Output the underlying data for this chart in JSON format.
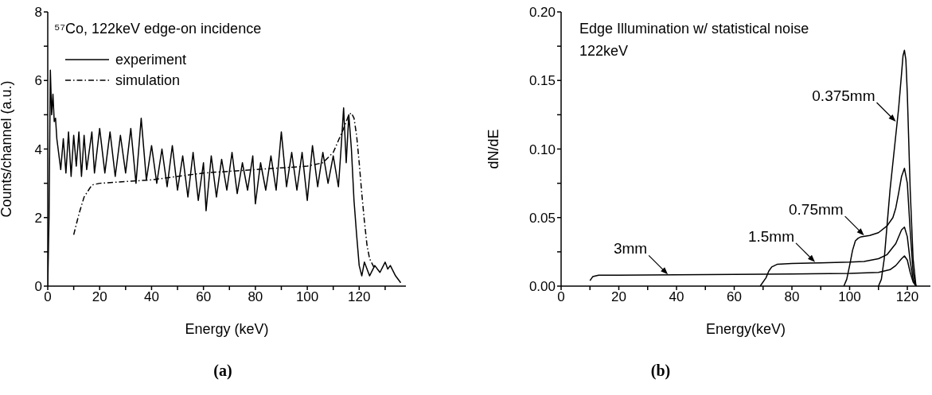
{
  "chart_data": [
    {
      "type": "line",
      "title": "⁵⁷Co, 122keV edge-on incidence",
      "xlabel": "Energy (keV)",
      "ylabel": "Counts/channel (a.u.)",
      "xlim": [
        0,
        138
      ],
      "xticks": [
        0,
        {
          "value": 10,
          "label": null
        },
        20,
        {
          "value": 30,
          "label": null
        },
        40,
        {
          "value": 50,
          "label": null
        },
        60,
        {
          "value": 70,
          "label": null
        },
        80,
        {
          "value": 90,
          "label": null
        },
        100,
        {
          "value": 110,
          "label": null
        },
        120,
        {
          "value": 130,
          "label": null
        }
      ],
      "ylim": [
        0,
        8
      ],
      "yticks": [
        0,
        {
          "value": 1,
          "label": null
        },
        2,
        {
          "value": 3,
          "label": null
        },
        4,
        {
          "value": 5,
          "label": null
        },
        6,
        {
          "value": 7,
          "label": null
        },
        8
      ],
      "grid": false,
      "legend": "top left",
      "marker": "none",
      "series": [
        {
          "name": "experiment",
          "color": "#000000",
          "line_style": "solid",
          "x": [
            0,
            0.5,
            1,
            1.5,
            2,
            2.5,
            3,
            3.5,
            4,
            5,
            6,
            7,
            8,
            9,
            10,
            11,
            12,
            13,
            14,
            15,
            17,
            18,
            20,
            22,
            24,
            26,
            28,
            30,
            32,
            34,
            36,
            38,
            40,
            42,
            44,
            46,
            48,
            50,
            52,
            54,
            56,
            58,
            60,
            61,
            63,
            65,
            67,
            69,
            71,
            73,
            75,
            77,
            79,
            80,
            82,
            84,
            86,
            88,
            90,
            92,
            94,
            96,
            98,
            100,
            102,
            104,
            106,
            108,
            110,
            112,
            113,
            114,
            115,
            116,
            117,
            118,
            119,
            120,
            121,
            122,
            124,
            126,
            128,
            130,
            131,
            132,
            134,
            136
          ],
          "values": [
            0,
            2,
            6.3,
            5.0,
            5.6,
            4.8,
            4.9,
            4.3,
            4.0,
            3.4,
            4.3,
            3.3,
            4.5,
            3.2,
            4.4,
            3.5,
            4.5,
            3.2,
            4.4,
            3.4,
            4.5,
            3.3,
            4.6,
            3.3,
            4.5,
            3.2,
            4.4,
            3.3,
            4.6,
            3.0,
            4.9,
            3.1,
            4.1,
            3.0,
            4.0,
            2.9,
            4.1,
            2.8,
            3.8,
            2.6,
            3.9,
            2.5,
            3.6,
            2.2,
            3.8,
            2.6,
            3.7,
            2.8,
            3.9,
            2.7,
            3.6,
            2.8,
            3.8,
            2.4,
            3.6,
            2.8,
            3.8,
            2.8,
            4.5,
            2.9,
            3.9,
            2.8,
            3.9,
            2.5,
            4.1,
            2.9,
            3.9,
            3.0,
            3.8,
            2.9,
            4.0,
            5.2,
            3.6,
            5.0,
            4.0,
            2.5,
            1.5,
            0.6,
            0.3,
            0.7,
            0.3,
            0.6,
            0.4,
            0.7,
            0.5,
            0.6,
            0.3,
            0.1
          ]
        },
        {
          "name": "simulation",
          "color": "#000000",
          "line_style": "dashed",
          "x": [
            10,
            12,
            14,
            17,
            20,
            30,
            40,
            50,
            60,
            80,
            100,
            106,
            110,
            114,
            116,
            117,
            118,
            119,
            120,
            121,
            122,
            123,
            124,
            126
          ],
          "values": [
            1.5,
            2.1,
            2.6,
            2.95,
            3.0,
            3.05,
            3.1,
            3.2,
            3.3,
            3.4,
            3.5,
            3.6,
            3.9,
            4.6,
            5.0,
            5.05,
            4.9,
            4.4,
            3.6,
            2.7,
            1.9,
            1.2,
            0.8,
            0.5
          ]
        }
      ],
      "annotations": [
        "(a)"
      ]
    },
    {
      "type": "line",
      "title": "Edge Illumination w/ statistical noise",
      "subtitle": "122keV",
      "xlabel": "Energy(keV)",
      "ylabel": "dN/dE",
      "xlim": [
        0,
        128
      ],
      "xticks": [
        0,
        {
          "value": 10,
          "label": null
        },
        20,
        {
          "value": 30,
          "label": null
        },
        40,
        {
          "value": 50,
          "label": null
        },
        60,
        {
          "value": 70,
          "label": null
        },
        80,
        {
          "value": 90,
          "label": null
        },
        100,
        {
          "value": 110,
          "label": null
        },
        120
      ],
      "ylim": [
        0,
        0.2
      ],
      "yticks": [
        {
          "value": 0,
          "label": "0.00"
        },
        {
          "value": 0.025,
          "label": null
        },
        {
          "value": 0.05,
          "label": "0.05"
        },
        {
          "value": 0.075,
          "label": null
        },
        {
          "value": 0.1,
          "label": "0.10"
        },
        {
          "value": 0.125,
          "label": null
        },
        {
          "value": 0.15,
          "label": "0.15"
        },
        {
          "value": 0.175,
          "label": null
        },
        {
          "value": 0.2,
          "label": "0.20"
        }
      ],
      "grid": false,
      "legend": false,
      "marker": "none",
      "series": [
        {
          "color": "#000000",
          "line_style": "solid",
          "x": [
            10,
            11,
            13,
            20,
            40,
            60,
            80,
            100,
            110,
            114,
            116,
            118,
            119,
            120,
            121,
            122,
            123
          ],
          "values": [
            0.004,
            0.007,
            0.008,
            0.008,
            0.0083,
            0.0086,
            0.0089,
            0.0093,
            0.01,
            0.012,
            0.015,
            0.02,
            0.022,
            0.019,
            0.01,
            0.003,
            0
          ]
        },
        {
          "color": "#000000",
          "line_style": "solid",
          "x": [
            69,
            71,
            72,
            73,
            75,
            80,
            90,
            100,
            105,
            110,
            113,
            116,
            118,
            119,
            120,
            121,
            122,
            123
          ],
          "values": [
            0,
            0.006,
            0.011,
            0.014,
            0.016,
            0.0165,
            0.017,
            0.0175,
            0.018,
            0.02,
            0.023,
            0.031,
            0.041,
            0.043,
            0.036,
            0.018,
            0.005,
            0
          ]
        },
        {
          "color": "#000000",
          "line_style": "solid",
          "x": [
            98,
            99,
            100,
            101,
            102,
            103,
            104,
            107,
            110,
            113,
            115,
            116,
            117,
            118,
            119,
            120,
            121,
            122,
            123
          ],
          "values": [
            0,
            0.005,
            0.015,
            0.026,
            0.033,
            0.035,
            0.036,
            0.037,
            0.039,
            0.044,
            0.05,
            0.057,
            0.068,
            0.08,
            0.086,
            0.075,
            0.04,
            0.01,
            0
          ]
        },
        {
          "color": "#000000",
          "line_style": "solid",
          "x": [
            110,
            111,
            112,
            113,
            114,
            115,
            116,
            117,
            118,
            118.5,
            119,
            119.5,
            120,
            121,
            122,
            123
          ],
          "values": [
            0,
            0.005,
            0.02,
            0.045,
            0.07,
            0.09,
            0.11,
            0.13,
            0.155,
            0.168,
            0.172,
            0.165,
            0.14,
            0.07,
            0.02,
            0
          ]
        }
      ],
      "annotations": [
        {
          "text": "3mm",
          "x": 37,
          "y": 0.0085
        },
        {
          "text": "1.5mm",
          "x": 88,
          "y": 0.0175
        },
        {
          "text": "0.75mm",
          "x": 105,
          "y": 0.037
        },
        {
          "text": "0.375mm",
          "x": 116,
          "y": 0.12
        },
        "(b)"
      ]
    }
  ]
}
